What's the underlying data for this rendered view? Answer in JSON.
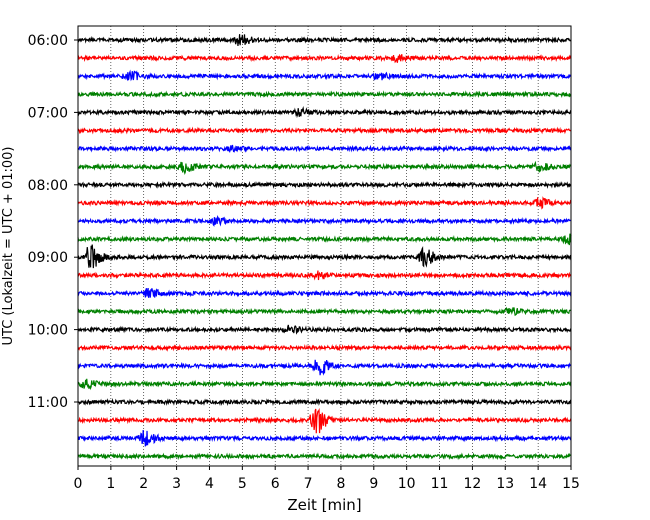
{
  "chart_data": {
    "type": "line",
    "title": "",
    "xlabel": "Zeit  [min]",
    "ylabel": "UTC (Lokalzeit = UTC + 01:00)",
    "xlim": [
      0,
      15
    ],
    "x_ticks": [
      0,
      1,
      2,
      3,
      4,
      5,
      6,
      7,
      8,
      9,
      10,
      11,
      12,
      13,
      14,
      15
    ],
    "y_tick_labels": [
      "06:00",
      "07:00",
      "08:00",
      "09:00",
      "10:00",
      "11:00"
    ],
    "y_tick_rows": [
      0,
      4,
      8,
      12,
      16,
      20
    ],
    "vertical_grid": true,
    "grid_style": "dotted",
    "trace_colors": [
      "#000000",
      "#ff0000",
      "#0000ff",
      "#008000"
    ],
    "traces": [
      {
        "start": "06:00",
        "events": [
          {
            "t": 4.9,
            "amp": 5
          }
        ]
      },
      {
        "start": "06:15",
        "events": [
          {
            "t": 9.7,
            "amp": 3
          }
        ]
      },
      {
        "start": "06:30",
        "events": [
          {
            "t": 1.5,
            "amp": 5
          },
          {
            "t": 9.1,
            "amp": 3
          }
        ]
      },
      {
        "start": "06:45",
        "events": []
      },
      {
        "start": "07:00",
        "events": [
          {
            "t": 6.7,
            "amp": 3
          }
        ]
      },
      {
        "start": "07:15",
        "events": []
      },
      {
        "start": "07:30",
        "events": [
          {
            "t": 4.6,
            "amp": 2
          }
        ]
      },
      {
        "start": "07:45",
        "events": [
          {
            "t": 3.2,
            "amp": 5
          },
          {
            "t": 14.0,
            "amp": 4
          }
        ]
      },
      {
        "start": "08:00",
        "events": []
      },
      {
        "start": "08:15",
        "events": [
          {
            "t": 14.0,
            "amp": 4
          }
        ]
      },
      {
        "start": "08:30",
        "events": [
          {
            "t": 4.1,
            "amp": 3
          }
        ]
      },
      {
        "start": "08:45",
        "events": [
          {
            "t": 14.9,
            "amp": 5
          }
        ]
      },
      {
        "start": "09:00",
        "events": [
          {
            "t": 0.35,
            "amp": 12
          },
          {
            "t": 10.5,
            "amp": 8
          }
        ]
      },
      {
        "start": "09:15",
        "events": [
          {
            "t": 7.3,
            "amp": 3
          }
        ]
      },
      {
        "start": "09:30",
        "events": [
          {
            "t": 2.1,
            "amp": 4
          }
        ]
      },
      {
        "start": "09:45",
        "events": [
          {
            "t": 13.1,
            "amp": 3
          }
        ]
      },
      {
        "start": "10:00",
        "events": [
          {
            "t": 6.4,
            "amp": 3
          }
        ]
      },
      {
        "start": "10:15",
        "events": []
      },
      {
        "start": "10:30",
        "events": [
          {
            "t": 7.3,
            "amp": 8
          }
        ]
      },
      {
        "start": "10:45",
        "events": [
          {
            "t": 0.2,
            "amp": 4
          }
        ]
      },
      {
        "start": "11:00",
        "events": []
      },
      {
        "start": "11:15",
        "events": [
          {
            "t": 7.2,
            "amp": 14
          }
        ]
      },
      {
        "start": "11:30",
        "events": [
          {
            "t": 2.0,
            "amp": 7
          }
        ]
      },
      {
        "start": "11:45",
        "events": []
      }
    ]
  }
}
